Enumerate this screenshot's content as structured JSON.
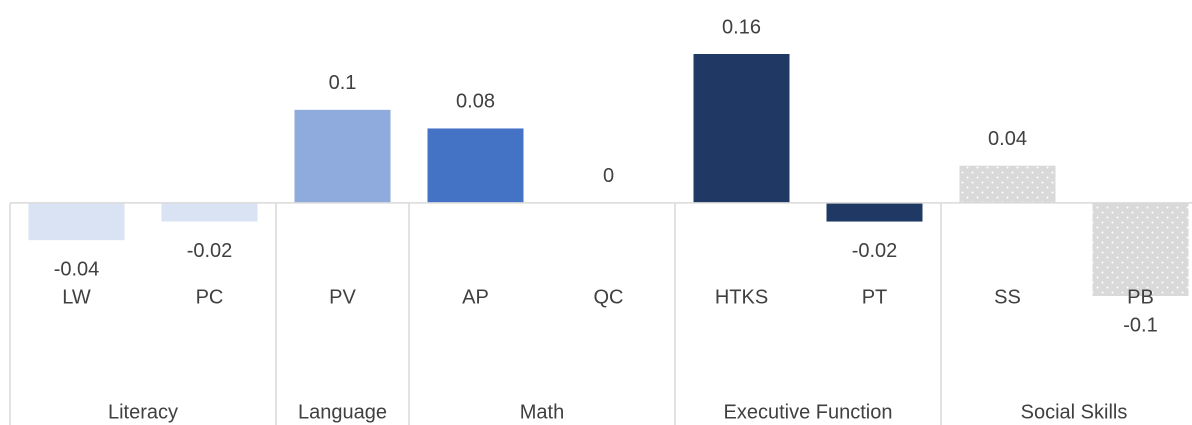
{
  "chart_data": {
    "type": "bar",
    "groups": [
      {
        "name": "Literacy",
        "categories": [
          "LW",
          "PC"
        ],
        "values": [
          -0.04,
          -0.02
        ],
        "color": "#dae3f3"
      },
      {
        "name": "Language",
        "categories": [
          "PV"
        ],
        "values": [
          0.1
        ],
        "color": "#8faadc"
      },
      {
        "name": "Math",
        "categories": [
          "AP",
          "QC"
        ],
        "values": [
          0.08,
          0
        ],
        "color": "#4472c4"
      },
      {
        "name": "Executive Function",
        "categories": [
          "HTKS",
          "PT"
        ],
        "values": [
          0.16,
          -0.02
        ],
        "color": "#203864"
      },
      {
        "name": "Social Skills",
        "categories": [
          "SS",
          "PB"
        ],
        "values": [
          0.04,
          -0.1
        ],
        "color": "#d9d9d9",
        "pattern": "dots"
      }
    ],
    "ylim": [
      -0.1,
      0.16
    ]
  }
}
